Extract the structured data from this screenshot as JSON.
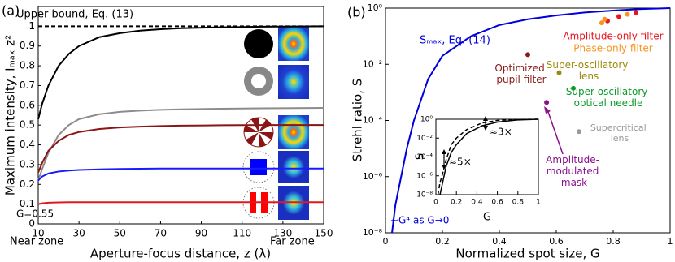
{
  "chart_data": [
    {
      "type": "line",
      "label": "(a)",
      "xlabel": "Aperture-focus distance, z (λ)",
      "ylabel": "Maximum intensity, Iₘₐₓ z²",
      "xlim": [
        10,
        150
      ],
      "ylim": [
        0,
        1.1
      ],
      "xticks": [
        10,
        30,
        50,
        70,
        90,
        110,
        130,
        150
      ],
      "yticks": [
        0,
        0.1,
        0.2,
        0.3,
        0.4,
        0.5,
        0.6,
        0.7,
        0.8,
        0.9,
        1
      ],
      "x": [
        10,
        12,
        15,
        20,
        25,
        30,
        40,
        50,
        60,
        70,
        80,
        100,
        120,
        150
      ],
      "series": [
        {
          "name": "Upper bound, Eq. (13)",
          "color": "#000000",
          "dashed": true,
          "values": [
            1,
            1,
            1,
            1,
            1,
            1,
            1,
            1,
            1,
            1,
            1,
            1,
            1,
            1
          ]
        },
        {
          "color": "#000000",
          "values": [
            0.53,
            0.61,
            0.7,
            0.8,
            0.86,
            0.9,
            0.945,
            0.965,
            0.978,
            0.985,
            0.99,
            0.995,
            0.998,
            1.0
          ]
        },
        {
          "color": "#8c8c8c",
          "values": [
            0.22,
            0.28,
            0.36,
            0.45,
            0.5,
            0.53,
            0.555,
            0.567,
            0.573,
            0.577,
            0.58,
            0.583,
            0.585,
            0.587
          ]
        },
        {
          "color": "#8b1414",
          "values": [
            0.26,
            0.31,
            0.37,
            0.42,
            0.45,
            0.465,
            0.48,
            0.488,
            0.492,
            0.495,
            0.497,
            0.499,
            0.5,
            0.5
          ]
        },
        {
          "color": "#1a1aff",
          "values": [
            0.22,
            0.24,
            0.255,
            0.265,
            0.27,
            0.273,
            0.276,
            0.278,
            0.279,
            0.28,
            0.28,
            0.28,
            0.28,
            0.28
          ]
        },
        {
          "color": "#e0191e",
          "values": [
            0.1,
            0.104,
            0.107,
            0.109,
            0.11,
            0.11,
            0.11,
            0.11,
            0.11,
            0.11,
            0.11,
            0.11,
            0.11,
            0.11
          ]
        }
      ],
      "annotations": [
        "G=0.55",
        "Near zone",
        "Far zone"
      ]
    },
    {
      "type": "scatter",
      "label": "(b)",
      "xlabel": "Normalized spot size, G",
      "ylabel": "Strehl ratio, S",
      "xlim": [
        0,
        1
      ],
      "ylim": [
        1e-08,
        1
      ],
      "log_y": true,
      "xticks": [
        0,
        0.2,
        0.4,
        0.6,
        0.8,
        1
      ],
      "yticks": [
        {
          "value": 1e-08,
          "label": "10⁻⁸"
        },
        {
          "value": 1e-06,
          "label": "10⁻⁶"
        },
        {
          "value": 0.0001,
          "label": "10⁻⁴"
        },
        {
          "value": 0.01,
          "label": "10⁻²"
        },
        {
          "value": 1,
          "label": "10⁰"
        }
      ],
      "series": [
        {
          "name": "Sₘₐₓ, Eq. (14)",
          "style": "line",
          "color": "#0000dd",
          "x": [
            0.023,
            0.035,
            0.055,
            0.075,
            0.1,
            0.15,
            0.2,
            0.3,
            0.4,
            0.5,
            0.6,
            0.7,
            0.8,
            0.9,
            1.0
          ],
          "values": [
            1e-08,
            1e-07,
            1e-06,
            1e-05,
            0.0001,
            0.003,
            0.02,
            0.1,
            0.25,
            0.4,
            0.55,
            0.7,
            0.82,
            0.93,
            1.0
          ]
        },
        {
          "name": "Amplitude-only filter",
          "style": "points",
          "color": "#e8141e",
          "x": [
            0.78,
            0.82,
            0.88
          ],
          "values": [
            0.35,
            0.5,
            0.7
          ]
        },
        {
          "name": "Phase-only filter",
          "style": "points",
          "color": "#f7941d",
          "x": [
            0.76,
            0.77,
            0.85
          ],
          "values": [
            0.3,
            0.4,
            0.6
          ]
        },
        {
          "name": "Optimized\npupil filter",
          "style": "points",
          "color": "#8b1a1a",
          "x": [
            0.5
          ],
          "values": [
            0.022
          ]
        },
        {
          "name": "Super-oscillatory\nlens",
          "style": "points",
          "color": "#9b8a0c",
          "x": [
            0.61
          ],
          "values": [
            0.005
          ]
        },
        {
          "name": "Super-oscillatory\noptical needle",
          "style": "points",
          "color": "#0a9a2a",
          "x": [
            0.66
          ],
          "values": [
            0.0014
          ]
        },
        {
          "name": "Amplitude-\nmodulated\nmask",
          "style": "points",
          "color": "#8b128b",
          "x": [
            0.566
          ],
          "values": [
            0.00044
          ]
        },
        {
          "name": "Supercritical\nlens",
          "style": "points",
          "color": "#9a9a9a",
          "x": [
            0.68
          ],
          "values": [
            4e-05
          ]
        }
      ],
      "annotations": [
        "~G⁴ as G→0"
      ]
    },
    {
      "type": "line",
      "xlabel": "G",
      "ylabel": "S",
      "xlim": [
        0,
        1
      ],
      "ylim": [
        1e-08,
        1
      ],
      "log_y": true,
      "xticks": [
        0,
        0.2,
        0.4,
        0.6,
        0.8,
        1
      ],
      "yticks": [
        {
          "value": 1e-08,
          "label": "10⁻⁸"
        },
        {
          "value": 1e-06,
          "label": "10⁻⁶"
        },
        {
          "value": 0.0001,
          "label": "10⁻⁴"
        },
        {
          "value": 0.01,
          "label": "10⁻²"
        },
        {
          "value": 1,
          "label": "10⁰"
        }
      ],
      "x": [
        0.02,
        0.04,
        0.06,
        0.1,
        0.15,
        0.2,
        0.3,
        0.45,
        0.6,
        0.8,
        1.0
      ],
      "series": [
        {
          "color": "#000000",
          "values": [
            null,
            1e-08,
            1e-07,
            1e-05,
            0.0003,
            0.002,
            0.03,
            0.2,
            0.5,
            0.85,
            1.0
          ]
        },
        {
          "color": "#000000",
          "dashed": true,
          "values": [
            1e-08,
            2e-07,
            1e-06,
            5e-05,
            0.002,
            0.01,
            0.08,
            0.4,
            0.75,
            0.95,
            1.0
          ]
        }
      ],
      "annotations": [
        "≈5×",
        "≈3×"
      ]
    }
  ]
}
